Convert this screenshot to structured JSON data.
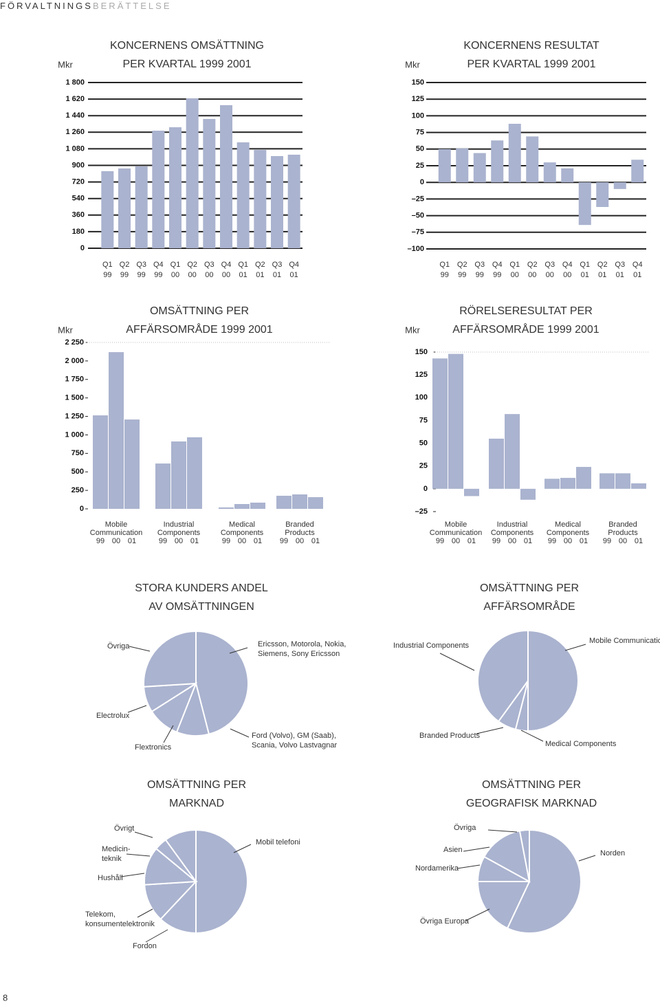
{
  "header": {
    "dark": "FÖRVALTNINGS",
    "light": "BERÄTTELSE"
  },
  "page_number": "8",
  "chart_data": [
    {
      "type": "bar",
      "title": "KONCERNENS OMSÄTTNING\nPER KVARTAL 1999 2001",
      "ylabel": "Mkr",
      "categories": [
        "Q1\n99",
        "Q2\n99",
        "Q3\n99",
        "Q4\n99",
        "Q1\n00",
        "Q2\n00",
        "Q3\n00",
        "Q4\n00",
        "Q1\n01",
        "Q2\n01",
        "Q3\n01",
        "Q4\n01"
      ],
      "values": [
        837,
        866,
        889,
        1277,
        1314,
        1628,
        1404,
        1554,
        1150,
        1068,
        1001,
        1016
      ],
      "color": "#aab3cf",
      "ylim": [
        0,
        1800
      ],
      "yticks": [
        0,
        180,
        360,
        540,
        720,
        900,
        {
          "value": 1080,
          "label": "1 080"
        },
        {
          "value": 1260,
          "label": "1 260"
        },
        {
          "value": 1440,
          "label": "1 440"
        },
        {
          "value": 1620,
          "label": "1 620"
        },
        {
          "value": 1800,
          "label": "1 800"
        }
      ],
      "grid": true
    },
    {
      "type": "bar",
      "title": "KONCERNENS RESULTAT\nPER KVARTAL 1999 2001",
      "ylabel": "Mkr",
      "categories": [
        "Q1\n99",
        "Q2\n99",
        "Q3\n99",
        "Q4\n99",
        "Q1\n00",
        "Q2\n00",
        "Q3\n00",
        "Q4\n00",
        "Q1\n01",
        "Q2\n01",
        "Q3\n01",
        "Q4\n01"
      ],
      "values": [
        50,
        51,
        44,
        63,
        88,
        69,
        30,
        21,
        -64,
        -37,
        -10,
        34
      ],
      "color": "#aab3cf",
      "ylim": [
        -100,
        150
      ],
      "yticks": [
        {
          "value": -100,
          "label": "–100"
        },
        {
          "value": -75,
          "label": "–75"
        },
        {
          "value": -50,
          "label": "–50"
        },
        {
          "value": -25,
          "label": "–25"
        },
        0,
        25,
        50,
        75,
        100,
        125,
        150
      ],
      "grid": true
    },
    {
      "type": "bar",
      "title": "OMSÄTTNING PER\nAFFÄRSOMRÅDE 1999 2001",
      "ylabel": "Mkr",
      "categories": [
        "Mobile\nCommunication",
        "Industrial\nComponents",
        "Medical\nComponents",
        "Branded\nProducts"
      ],
      "series": [
        {
          "name": "99",
          "color": "#aab3cf",
          "values": [
            1264,
            613,
            19,
            177
          ]
        },
        {
          "name": "00",
          "color": "#aab3cf",
          "values": [
            2119,
            911,
            65,
            195
          ]
        },
        {
          "name": "01",
          "color": "#aab3cf",
          "values": [
            1208,
            967,
            84,
            158
          ]
        }
      ],
      "ylim": [
        0,
        2250
      ],
      "yticks": [
        0,
        250,
        500,
        750,
        {
          "value": 1000,
          "label": "1 000"
        },
        {
          "value": 1250,
          "label": "1 250"
        },
        {
          "value": 1500,
          "label": "1 500"
        },
        {
          "value": 1750,
          "label": "1 750"
        },
        {
          "value": 2000,
          "label": "2 000"
        },
        {
          "value": 2250,
          "label": "2 250"
        }
      ],
      "grid": false
    },
    {
      "type": "bar",
      "title": "RÖRELSERESULTAT PER\nAFFÄRSOMRÅDE 1999 2001",
      "ylabel": "Mkr",
      "categories": [
        "Mobile\nCommunication",
        "Industrial\nComponents",
        "Medical\nComponents",
        "Branded\nProducts"
      ],
      "series": [
        {
          "name": "99",
          "color": "#aab3cf",
          "values": [
            143,
            55,
            11,
            17
          ]
        },
        {
          "name": "00",
          "color": "#aab3cf",
          "values": [
            148,
            82,
            12,
            17
          ]
        },
        {
          "name": "01",
          "color": "#aab3cf",
          "values": [
            -8,
            -12,
            24,
            6
          ]
        }
      ],
      "ylim": [
        -25,
        150
      ],
      "yticks": [
        {
          "value": -25,
          "label": "–25"
        },
        0,
        25,
        50,
        75,
        100,
        125,
        150
      ],
      "grid": false
    },
    {
      "type": "pie",
      "title": "STORA KUNDERS ANDEL\nAV OMSÄTTNINGEN",
      "categories": [
        "Ericsson, Motorola, Nokia,\nSiemens, Sony Ericsson",
        "Ford (Volvo), GM (Saab),\nScania, Volvo Lastvagnar",
        "Flextronics",
        "Electrolux",
        "Övriga"
      ],
      "values": [
        46,
        10,
        10,
        8,
        26
      ],
      "color": "#aab3cf"
    },
    {
      "type": "pie",
      "title": "OMSÄTTNING PER\nAFFÄRSOMRÅDE",
      "categories": [
        "Mobile Communication",
        "Medical Components",
        "Branded Products",
        "Industrial Components"
      ],
      "values": [
        50,
        4,
        6,
        40
      ],
      "color": "#aab3cf"
    },
    {
      "type": "pie",
      "title": "OMSÄTTNING PER\nMARKNAD",
      "categories": [
        "Mobil telefoni",
        "Fordon",
        "Telekom,\nkonsumentelektronik",
        "Hushåll",
        "Medicin-\nteknik",
        "Övrigt"
      ],
      "values": [
        50,
        12,
        12,
        12,
        4,
        10
      ],
      "color": "#aab3cf"
    },
    {
      "type": "pie",
      "title": "OMSÄTTNING PER\nGEOGRAFISK MARKNAD",
      "categories": [
        "Norden",
        "Övriga Europa",
        "Nordamerika",
        "Asien",
        "Övriga"
      ],
      "values": [
        57,
        18,
        8,
        14,
        3
      ],
      "color": "#aab3cf"
    }
  ]
}
